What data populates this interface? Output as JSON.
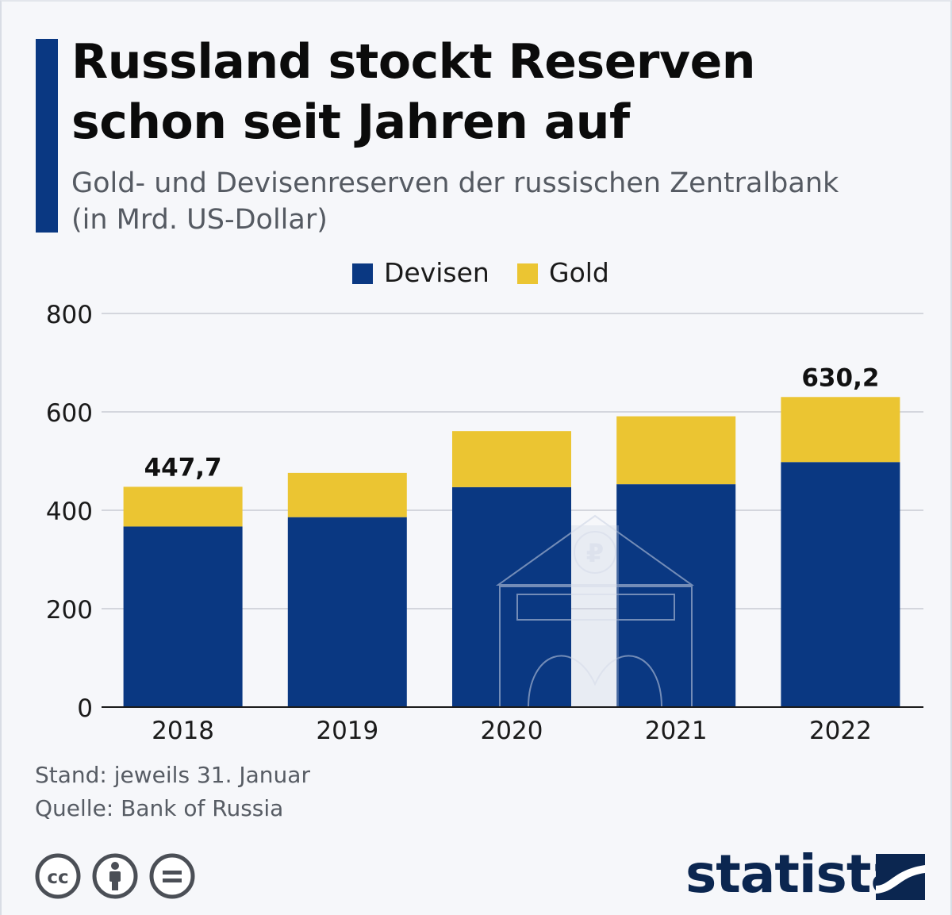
{
  "header": {
    "title_line1": "Russland stockt Reserven",
    "title_line2": "schon seit Jahren auf",
    "subtitle_line1": "Gold- und Devisenreserven der russischen Zentralbank",
    "subtitle_line2": "(in Mrd. US-Dollar)"
  },
  "legend": {
    "devisen": "Devisen",
    "gold": "Gold"
  },
  "chart_data": {
    "type": "bar",
    "stacked": true,
    "categories": [
      "2018",
      "2019",
      "2020",
      "2021",
      "2022"
    ],
    "series": [
      {
        "name": "Devisen",
        "color": "#0a3882",
        "values": [
          367,
          386,
          447,
          453,
          498
        ]
      },
      {
        "name": "Gold",
        "color": "#ebc532",
        "values": [
          80.7,
          90,
          114,
          138,
          132.2
        ]
      }
    ],
    "totals_labels": [
      {
        "category": "2018",
        "label": "447,7",
        "value": 447.7
      },
      {
        "category": "2022",
        "label": "630,2",
        "value": 630.2
      }
    ],
    "yticks": [
      "0",
      "200",
      "400",
      "600",
      "800"
    ],
    "ylim": [
      0,
      800
    ],
    "grid": true,
    "legend_position": "top-center"
  },
  "footer": {
    "note": "Stand: jeweils 31. Januar",
    "source": "Quelle: Bank of Russia",
    "brand": "statista",
    "license_icons": [
      "cc-icon",
      "by-attribution-icon",
      "no-derivatives-icon"
    ]
  },
  "colors": {
    "accent": "#0a3882",
    "gold": "#ebc532",
    "brand": "#0b2650"
  }
}
